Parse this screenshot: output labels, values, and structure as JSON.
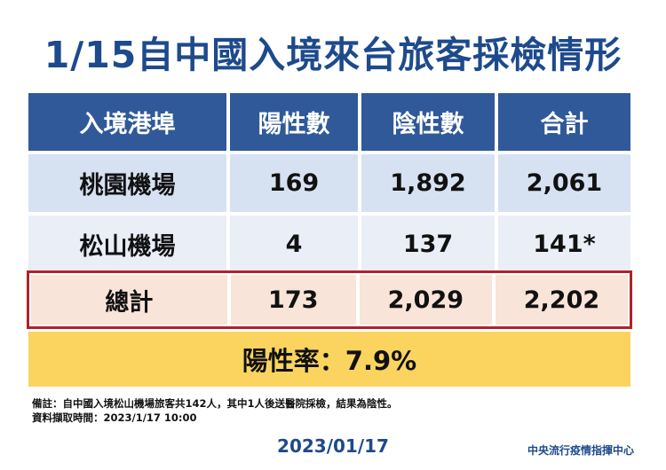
{
  "title": "1/15自中國入境來台旅客採檢情形",
  "table": {
    "headers": [
      "入境港埠",
      "陽性數",
      "陰性數",
      "合計"
    ],
    "rows": [
      [
        "桃園機場",
        "169",
        "1,892",
        "2,061"
      ],
      [
        "松山機場",
        "4",
        "137",
        "141*"
      ]
    ],
    "total": [
      "總計",
      "173",
      "2,029",
      "2,202"
    ]
  },
  "positive_rate": "陽性率：7.9%",
  "notes": {
    "remark": "備註：自中國入境松山機場旅客共142人，其中1人後送醫院採檢，結果為陰性。",
    "data_time": "資料擷取時間：2023/1/17 10:00"
  },
  "date": "2023/01/17",
  "organization": "中央流行疫情指揮中心",
  "colors": {
    "title": "#1d4a8c",
    "header_bg": "#30599a",
    "row1_bg": "#d6e2f1",
    "row2_bg": "#e9eef7",
    "total_bg": "#f8e4d8",
    "total_border": "#b0222a",
    "rate_bg": "#fad45e"
  }
}
